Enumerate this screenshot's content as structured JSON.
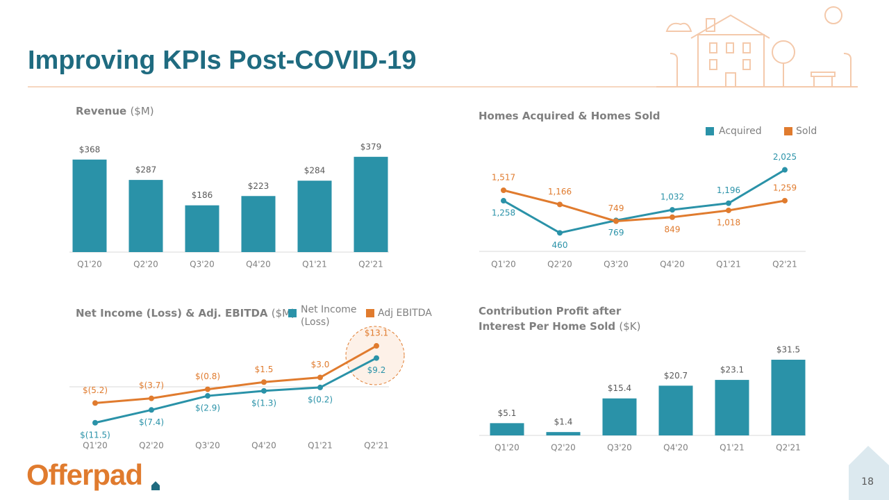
{
  "title": "Improving KPIs Post-COVID-19",
  "logo": "Offerpad",
  "page_number": "18",
  "chart_data": [
    {
      "type": "bar",
      "title": "Revenue",
      "title_unit": "($M)",
      "color": "#2a92a8",
      "categories": [
        "Q1'20",
        "Q2'20",
        "Q3'20",
        "Q4'20",
        "Q1'21",
        "Q2'21"
      ],
      "values": [
        368,
        287,
        186,
        223,
        284,
        379
      ],
      "value_labels": [
        "$368",
        "$287",
        "$186",
        "$223",
        "$284",
        "$379"
      ]
    },
    {
      "type": "line",
      "title": "Homes Acquired & Homes Sold",
      "categories": [
        "Q1'20",
        "Q2'20",
        "Q3'20",
        "Q4'20",
        "Q1'21",
        "Q2'21"
      ],
      "series": [
        {
          "name": "Acquired",
          "color": "#2a92a8",
          "values": [
            1258,
            460,
            769,
            1032,
            1196,
            2025
          ],
          "value_labels": [
            "1,258",
            "460",
            "769",
            "1,032",
            "1,196",
            "2,025"
          ]
        },
        {
          "name": "Sold",
          "color": "#e07b2e",
          "values": [
            1517,
            1166,
            749,
            849,
            1018,
            1259
          ],
          "value_labels": [
            "1,517",
            "1,166",
            "749",
            "849",
            "1,018",
            "1,259"
          ]
        }
      ]
    },
    {
      "type": "line",
      "title": "Net Income (Loss) & Adj. EBITDA",
      "title_unit": "($M)",
      "categories": [
        "Q1'20",
        "Q2'20",
        "Q3'20",
        "Q4'20",
        "Q1'21",
        "Q2'21"
      ],
      "series": [
        {
          "name": "Net Income (Loss)",
          "color": "#2a92a8",
          "values": [
            -11.5,
            -7.4,
            -2.9,
            -1.3,
            -0.2,
            9.2
          ],
          "value_labels": [
            "$(11.5)",
            "$(7.4)",
            "$(2.9)",
            "$(1.3)",
            "$(0.2)",
            "$9.2"
          ]
        },
        {
          "name": "Adj EBITDA",
          "color": "#e07b2e",
          "values": [
            -5.2,
            -3.7,
            -0.8,
            1.5,
            3.0,
            13.1
          ],
          "value_labels": [
            "$(5.2)",
            "$(3.7)",
            "$(0.8)",
            "$1.5",
            "$3.0",
            "$13.1"
          ]
        }
      ]
    },
    {
      "type": "bar",
      "title": "Contribution Profit after Interest Per Home Sold",
      "title_unit": "($K)",
      "color": "#2a92a8",
      "categories": [
        "Q1'20",
        "Q2'20",
        "Q3'20",
        "Q4'20",
        "Q1'21",
        "Q2'21"
      ],
      "values": [
        5.1,
        1.4,
        15.4,
        20.7,
        23.1,
        31.5
      ],
      "value_labels": [
        "$5.1",
        "$1.4",
        "$15.4",
        "$20.7",
        "$23.1",
        "$31.5"
      ]
    }
  ]
}
